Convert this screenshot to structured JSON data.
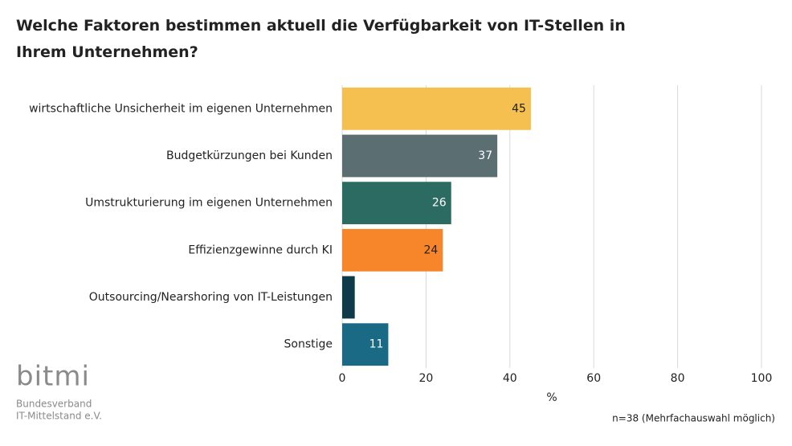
{
  "chart_data": {
    "type": "barh",
    "title": "Welche Faktoren bestimmen aktuell die Verfügbarkeit von IT-Stellen in Ihrem Unternehmen?",
    "categories": [
      "wirtschaftliche Unsicherheit im eigenen Unternehmen",
      "Budgetkürzungen bei Kunden",
      "Umstrukturierung im eigenen Unternehmen",
      "Effizienzgewinne durch KI",
      "Outsourcing/Nearshoring von IT-Leistungen",
      "Sonstige"
    ],
    "values": [
      45,
      37,
      26,
      24,
      3,
      11
    ],
    "value_labels": [
      "45",
      "37",
      "26",
      "24",
      null,
      "11"
    ],
    "colors": [
      "#f5c04f",
      "#5b6e72",
      "#2c6b62",
      "#f7862a",
      "#0f3a4a",
      "#1a6a86"
    ],
    "xlim": [
      0,
      100
    ],
    "xticks": [
      0,
      20,
      40,
      60,
      80,
      100
    ],
    "grid": true,
    "xlabel": "%",
    "note": "n=38 (Mehrfachauswahl möglich)"
  },
  "logo": {
    "name": "bitmi",
    "lines": [
      "Bundesverband",
      "IT-Mittelstand e.V."
    ]
  }
}
